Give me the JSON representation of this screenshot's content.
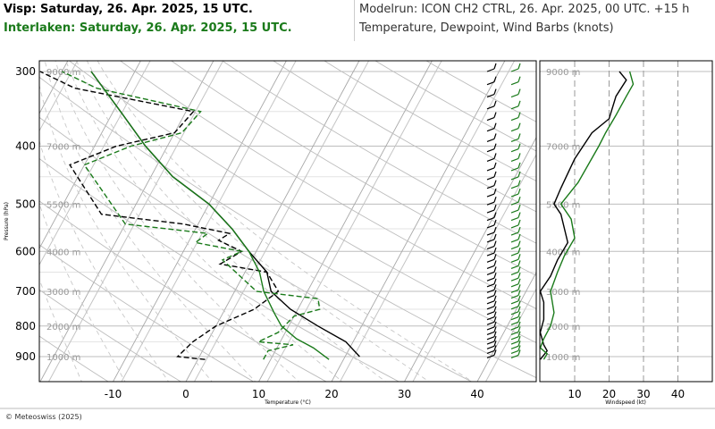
{
  "header": {
    "location1": "Visp: Saturday, 26. Apr. 2025, 15 UTC.",
    "location2": "Interlaken: Saturday, 26. Apr. 2025, 15 UTC.",
    "model_run": "Modelrun: ICON CH2 CTRL, 26. Apr. 2025, 00 UTC. +15 h",
    "description": "Temperature, Dewpoint, Wind Barbs (knots)"
  },
  "footer": "© Meteoswiss (2025)",
  "colors": {
    "visp": "#000000",
    "interlaken": "#1a7a1a"
  },
  "chart_data": [
    {
      "type": "line",
      "subtype": "skew-T log-P",
      "xlabel": "Temperature (°C)",
      "ylabel": "Pressure (hPa)",
      "xticks": [
        "-10",
        "0",
        "10",
        "20",
        "30",
        "40"
      ],
      "yticks": [
        "300",
        "400",
        "500",
        "600",
        "700",
        "800",
        "900"
      ],
      "height_labels": [
        "1000 m",
        "2000 m",
        "3000 m",
        "4000 m",
        "5500 m",
        "7000 m",
        "9000 m"
      ],
      "series": [
        {
          "name": "Visp",
          "kind": "temperature",
          "points": [
            [
              22,
              900
            ],
            [
              19,
              850
            ],
            [
              14,
              800
            ],
            [
              9,
              750
            ],
            [
              5,
              700
            ],
            [
              3,
              650
            ],
            [
              -1,
              600
            ],
            [
              -5,
              550
            ],
            [
              -10,
              500
            ],
            [
              -17,
              450
            ],
            [
              -23,
              400
            ],
            [
              -29,
              350
            ],
            [
              -36,
              300
            ]
          ]
        },
        {
          "name": "Visp",
          "kind": "dewpoint",
          "points": [
            [
              1,
              910
            ],
            [
              -3,
              900
            ],
            [
              -2,
              850
            ],
            [
              0,
              800
            ],
            [
              4,
              750
            ],
            [
              6,
              700
            ],
            [
              3,
              650
            ],
            [
              -4,
              630
            ],
            [
              -2,
              600
            ],
            [
              -6,
              575
            ],
            [
              -5,
              560
            ],
            [
              -12,
              540
            ],
            [
              -24,
              520
            ],
            [
              -32,
              430
            ],
            [
              -27,
              400
            ],
            [
              -20,
              380
            ],
            [
              -19,
              350
            ],
            [
              -37,
              320
            ],
            [
              -43,
              300
            ]
          ]
        },
        {
          "name": "Interlaken",
          "kind": "temperature",
          "points": [
            [
              18,
              910
            ],
            [
              15,
              870
            ],
            [
              12,
              840
            ],
            [
              9,
              800
            ],
            [
              7,
              760
            ],
            [
              4,
              700
            ],
            [
              2,
              650
            ],
            [
              -1,
              600
            ],
            [
              -5,
              550
            ],
            [
              -10,
              500
            ],
            [
              -17,
              450
            ],
            [
              -23,
              400
            ],
            [
              -29,
              350
            ],
            [
              -36,
              300
            ]
          ]
        },
        {
          "name": "Interlaken",
          "kind": "dewpoint",
          "points": [
            [
              9,
              910
            ],
            [
              9,
              880
            ],
            [
              12,
              860
            ],
            [
              7,
              850
            ],
            [
              9,
              820
            ],
            [
              10,
              770
            ],
            [
              13,
              750
            ],
            [
              12,
              720
            ],
            [
              3,
              700
            ],
            [
              -4,
              620
            ],
            [
              -2,
              600
            ],
            [
              -9,
              580
            ],
            [
              -8,
              560
            ],
            [
              -20,
              540
            ],
            [
              -30,
              430
            ],
            [
              -25,
              400
            ],
            [
              -19,
              380
            ],
            [
              -18,
              350
            ],
            [
              -34,
              320
            ],
            [
              -40,
              300
            ]
          ]
        }
      ]
    },
    {
      "type": "line",
      "xlabel": "Windspeed (kt)",
      "xticks": [
        "10",
        "20",
        "30",
        "40"
      ],
      "height_labels": [
        "1000 m",
        "2000 m",
        "3000 m",
        "4000 m",
        "5500 m",
        "7000 m",
        "9000 m"
      ],
      "series": [
        {
          "name": "Visp",
          "points": [
            [
              0,
              910
            ],
            [
              2,
              880
            ],
            [
              1,
              860
            ],
            [
              0,
              820
            ],
            [
              1,
              780
            ],
            [
              1,
              730
            ],
            [
              0,
              700
            ],
            [
              3,
              660
            ],
            [
              5,
              620
            ],
            [
              8,
              580
            ],
            [
              6,
              520
            ],
            [
              4,
              500
            ],
            [
              6,
              470
            ],
            [
              10,
              420
            ],
            [
              15,
              380
            ],
            [
              20,
              360
            ],
            [
              22,
              330
            ],
            [
              25,
              310
            ],
            [
              23,
              300
            ]
          ]
        },
        {
          "name": "Interlaken",
          "points": [
            [
              1,
              910
            ],
            [
              2,
              890
            ],
            [
              0,
              870
            ],
            [
              1,
              840
            ],
            [
              3,
              800
            ],
            [
              4,
              760
            ],
            [
              3,
              700
            ],
            [
              5,
              650
            ],
            [
              7,
              610
            ],
            [
              10,
              570
            ],
            [
              9,
              530
            ],
            [
              6,
              500
            ],
            [
              11,
              460
            ],
            [
              17,
              400
            ],
            [
              19,
              380
            ],
            [
              22,
              355
            ],
            [
              25,
              330
            ],
            [
              27,
              315
            ],
            [
              26,
              300
            ]
          ]
        }
      ]
    }
  ]
}
